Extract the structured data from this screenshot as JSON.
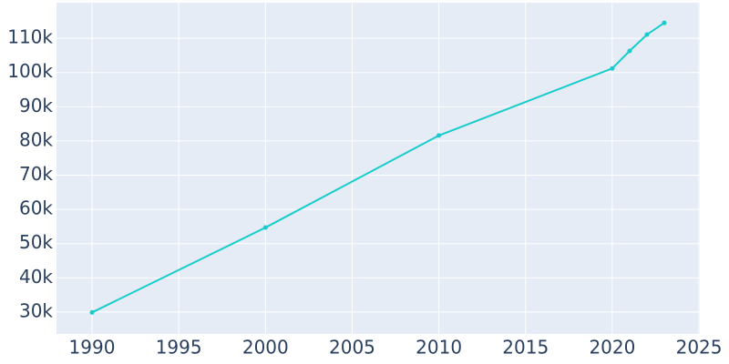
{
  "chart_data": {
    "type": "line",
    "x": [
      1990,
      2000,
      2010,
      2020,
      2021,
      2022,
      2023
    ],
    "series": [
      {
        "color": "#17cccc",
        "values": [
          29900,
          54700,
          81600,
          101200,
          106300,
          111100,
          114500
        ]
      }
    ],
    "xlim": [
      1987.95,
      2025.05
    ],
    "xticks": [
      1990,
      1995,
      2000,
      2005,
      2010,
      2015,
      2020,
      2025
    ],
    "ylim": [
      23600,
      120400
    ],
    "yticks": [
      {
        "value": 30000,
        "label": "30k"
      },
      {
        "value": 40000,
        "label": "40k"
      },
      {
        "value": 50000,
        "label": "50k"
      },
      {
        "value": 60000,
        "label": "60k"
      },
      {
        "value": 70000,
        "label": "70k"
      },
      {
        "value": 80000,
        "label": "80k"
      },
      {
        "value": 90000,
        "label": "90k"
      },
      {
        "value": 100000,
        "label": "100k"
      },
      {
        "value": 110000,
        "label": "110k"
      }
    ],
    "grid": true
  }
}
